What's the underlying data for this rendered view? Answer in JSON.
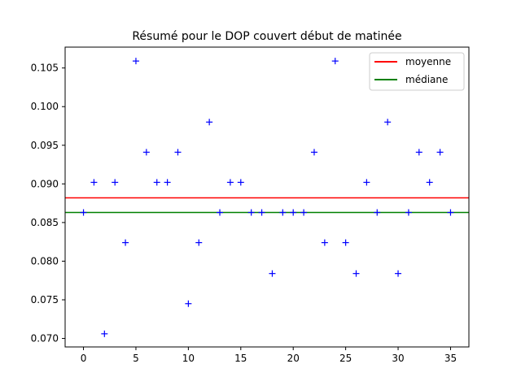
{
  "chart_data": {
    "type": "scatter",
    "title": "Résumé pour le DOP couvert début de matinée",
    "xlabel": "",
    "ylabel": "",
    "xlim": [
      -1.75,
      36.75
    ],
    "ylim": [
      0.0689,
      0.1077
    ],
    "xticks": [
      0,
      5,
      10,
      15,
      20,
      25,
      30,
      35
    ],
    "yticks": [
      0.07,
      0.075,
      0.08,
      0.085,
      0.09,
      0.095,
      0.1,
      0.105
    ],
    "ytick_labels": [
      "0.070",
      "0.075",
      "0.080",
      "0.085",
      "0.090",
      "0.095",
      "0.100",
      "0.105"
    ],
    "grid": false,
    "legend_position": "top-right",
    "series": [
      {
        "marker": "+",
        "color": "#0000ff",
        "x": [
          0,
          1,
          2,
          3,
          4,
          5,
          6,
          7,
          8,
          9,
          10,
          11,
          12,
          13,
          14,
          15,
          16,
          17,
          18,
          19,
          20,
          21,
          22,
          23,
          24,
          25,
          26,
          27,
          28,
          29,
          30,
          31,
          32,
          33,
          34,
          35
        ],
        "y": [
          0.0863,
          0.0902,
          0.0706,
          0.0902,
          0.0824,
          0.1059,
          0.0941,
          0.0902,
          0.0902,
          0.0941,
          0.0745,
          0.0824,
          0.098,
          0.0863,
          0.0902,
          0.0902,
          0.0863,
          0.0863,
          0.0784,
          0.0863,
          0.0863,
          0.0863,
          0.0941,
          0.0824,
          0.1059,
          0.0824,
          0.0784,
          0.0902,
          0.0863,
          0.098,
          0.0784,
          0.0863,
          0.0941,
          0.0902,
          0.0941,
          0.0863
        ]
      }
    ],
    "hlines": [
      {
        "name": "moyenne",
        "value": 0.0882,
        "color": "#ff0000"
      },
      {
        "name": "médiane",
        "value": 0.0863,
        "color": "#008000"
      }
    ]
  }
}
